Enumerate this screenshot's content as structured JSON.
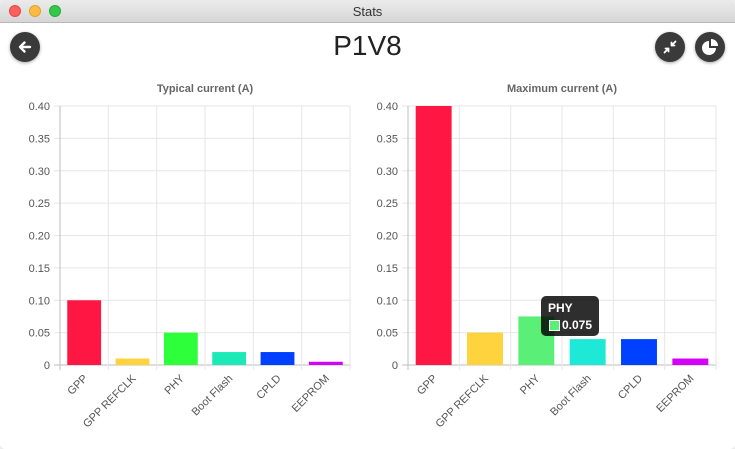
{
  "window": {
    "title": "Stats"
  },
  "header": {
    "title": "P1V8",
    "back_icon": "arrow-left-icon",
    "collapse_icon": "compress-icon",
    "chart_icon": "pie-chart-icon"
  },
  "tooltip": {
    "label": "PHY",
    "value": "0.075",
    "color": "#5af078"
  },
  "chart_data": [
    {
      "type": "bar",
      "title": "Typical current (A)",
      "categories": [
        "GPP",
        "GPP REFCLK",
        "PHY",
        "Boot Flash",
        "CPLD",
        "EEPROM"
      ],
      "values": [
        0.1,
        0.01,
        0.05,
        0.02,
        0.02,
        0.005
      ],
      "colors": [
        "#ff1744",
        "#ffd33d",
        "#2eff3b",
        "#1de9b6",
        "#0040ff",
        "#d500f9"
      ],
      "ylim": [
        0,
        0.4
      ],
      "yticks": [
        "0",
        "0.05",
        "0.10",
        "0.15",
        "0.20",
        "0.25",
        "0.30",
        "0.35",
        "0.40"
      ],
      "grid": true
    },
    {
      "type": "bar",
      "title": "Maximum current (A)",
      "categories": [
        "GPP",
        "GPP REFCLK",
        "PHY",
        "Boot Flash",
        "CPLD",
        "EEPROM"
      ],
      "values": [
        0.4,
        0.05,
        0.075,
        0.04,
        0.04,
        0.01
      ],
      "colors": [
        "#ff1744",
        "#ffd33d",
        "#5af078",
        "#1de9d6",
        "#0040ff",
        "#d500f9"
      ],
      "ylim": [
        0,
        0.4
      ],
      "yticks": [
        "0",
        "0.05",
        "0.10",
        "0.15",
        "0.20",
        "0.25",
        "0.30",
        "0.35",
        "0.40"
      ],
      "grid": true
    }
  ]
}
